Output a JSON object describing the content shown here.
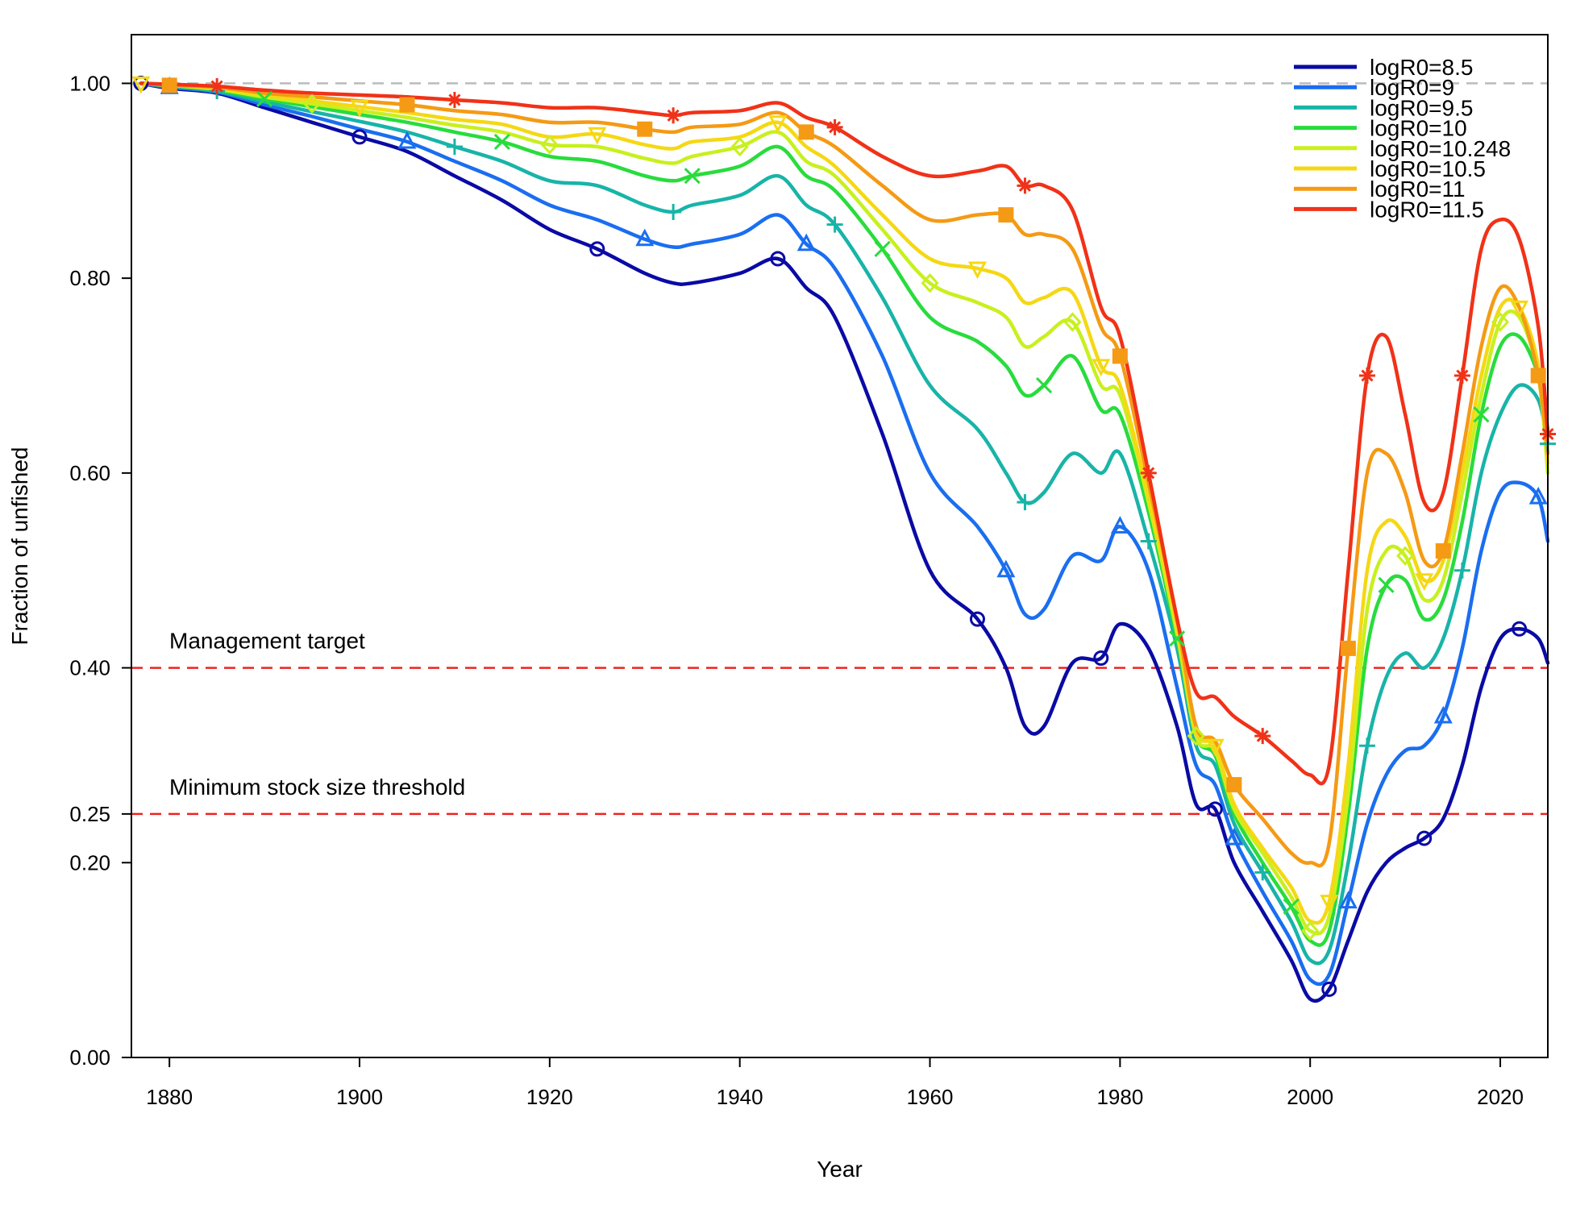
{
  "chart_data": {
    "type": "line",
    "xlabel": "Year",
    "ylabel": "Fraction of unfished",
    "xlim": [
      1876,
      2025
    ],
    "ylim": [
      0,
      1.05
    ],
    "x_ticks": [
      1880,
      1900,
      1920,
      1940,
      1960,
      1980,
      2000,
      2020
    ],
    "y_ticks": [
      0.0,
      0.2,
      0.25,
      0.4,
      0.6,
      0.8,
      1.0
    ],
    "y_tick_labels": [
      "0.00",
      "0.20",
      "0.25",
      "0.40",
      "0.60",
      "0.80",
      "1.00"
    ],
    "grid": false,
    "legend_position": "top-right",
    "reference_lines": [
      {
        "y": 1.0,
        "color": "#bbbbbb",
        "style": "dashed"
      },
      {
        "y": 0.4,
        "color": "#ee2222",
        "style": "dashed",
        "label": "Management target"
      },
      {
        "y": 0.25,
        "color": "#ee2222",
        "style": "dashed",
        "label": "Minimum stock size threshold"
      }
    ],
    "x": [
      1877,
      1880,
      1885,
      1890,
      1895,
      1900,
      1905,
      1910,
      1915,
      1920,
      1925,
      1930,
      1933,
      1935,
      1940,
      1944,
      1947,
      1950,
      1955,
      1960,
      1965,
      1968,
      1970,
      1972,
      1975,
      1978,
      1980,
      1983,
      1986,
      1988,
      1990,
      1992,
      1995,
      1998,
      2000,
      2002,
      2004,
      2006,
      2008,
      2010,
      2012,
      2014,
      2016,
      2018,
      2020,
      2022,
      2024,
      2025
    ],
    "series": [
      {
        "name": "logR0=8.5",
        "color": "#0a0aa5",
        "marker": "circle",
        "values": [
          1.0,
          0.995,
          0.99,
          0.975,
          0.96,
          0.945,
          0.93,
          0.905,
          0.88,
          0.85,
          0.83,
          0.805,
          0.795,
          0.795,
          0.805,
          0.82,
          0.79,
          0.76,
          0.64,
          0.5,
          0.45,
          0.4,
          0.34,
          0.34,
          0.405,
          0.41,
          0.445,
          0.42,
          0.34,
          0.26,
          0.255,
          0.2,
          0.15,
          0.1,
          0.06,
          0.07,
          0.12,
          0.17,
          0.2,
          0.215,
          0.225,
          0.245,
          0.3,
          0.38,
          0.43,
          0.44,
          0.43,
          0.405
        ]
      },
      {
        "name": "logR0=9",
        "color": "#1a6ef0",
        "marker": "triangle",
        "values": [
          1.0,
          0.996,
          0.991,
          0.978,
          0.966,
          0.953,
          0.94,
          0.92,
          0.9,
          0.875,
          0.86,
          0.84,
          0.832,
          0.835,
          0.845,
          0.865,
          0.835,
          0.81,
          0.72,
          0.6,
          0.545,
          0.5,
          0.455,
          0.46,
          0.515,
          0.51,
          0.545,
          0.5,
          0.38,
          0.3,
          0.28,
          0.225,
          0.17,
          0.12,
          0.08,
          0.085,
          0.16,
          0.24,
          0.29,
          0.315,
          0.32,
          0.35,
          0.42,
          0.52,
          0.58,
          0.59,
          0.575,
          0.53
        ]
      },
      {
        "name": "logR0=9.5",
        "color": "#18b4a8",
        "marker": "plus",
        "values": [
          1.0,
          0.997,
          0.992,
          0.981,
          0.971,
          0.961,
          0.95,
          0.935,
          0.92,
          0.9,
          0.895,
          0.875,
          0.868,
          0.875,
          0.885,
          0.905,
          0.875,
          0.855,
          0.78,
          0.69,
          0.645,
          0.6,
          0.57,
          0.58,
          0.62,
          0.6,
          0.62,
          0.53,
          0.42,
          0.32,
          0.3,
          0.24,
          0.19,
          0.14,
          0.1,
          0.11,
          0.2,
          0.32,
          0.39,
          0.415,
          0.4,
          0.43,
          0.5,
          0.6,
          0.66,
          0.69,
          0.675,
          0.63
        ]
      },
      {
        "name": "logR0=10",
        "color": "#28dc3c",
        "marker": "x",
        "values": [
          1.0,
          0.998,
          0.993,
          0.984,
          0.976,
          0.968,
          0.96,
          0.95,
          0.94,
          0.925,
          0.92,
          0.905,
          0.9,
          0.905,
          0.915,
          0.935,
          0.905,
          0.89,
          0.83,
          0.76,
          0.735,
          0.71,
          0.68,
          0.69,
          0.72,
          0.665,
          0.66,
          0.56,
          0.43,
          0.33,
          0.31,
          0.25,
          0.2,
          0.155,
          0.12,
          0.13,
          0.25,
          0.42,
          0.485,
          0.49,
          0.45,
          0.47,
          0.55,
          0.66,
          0.73,
          0.74,
          0.7,
          0.645
        ]
      },
      {
        "name": "logR0=10.248",
        "color": "#c8f01e",
        "marker": "diamond",
        "values": [
          1.0,
          0.998,
          0.994,
          0.986,
          0.979,
          0.972,
          0.965,
          0.957,
          0.95,
          0.937,
          0.935,
          0.923,
          0.918,
          0.925,
          0.935,
          0.95,
          0.92,
          0.905,
          0.85,
          0.795,
          0.775,
          0.76,
          0.73,
          0.74,
          0.755,
          0.69,
          0.68,
          0.57,
          0.435,
          0.33,
          0.315,
          0.255,
          0.21,
          0.165,
          0.13,
          0.145,
          0.27,
          0.46,
          0.52,
          0.515,
          0.47,
          0.49,
          0.58,
          0.68,
          0.755,
          0.76,
          0.7,
          0.6
        ]
      },
      {
        "name": "logR0=10.5",
        "color": "#f5d814",
        "marker": "triangle-down",
        "values": [
          1.0,
          0.998,
          0.995,
          0.988,
          0.982,
          0.976,
          0.97,
          0.963,
          0.958,
          0.945,
          0.948,
          0.937,
          0.933,
          0.94,
          0.945,
          0.96,
          0.935,
          0.915,
          0.865,
          0.82,
          0.81,
          0.8,
          0.775,
          0.78,
          0.785,
          0.71,
          0.69,
          0.575,
          0.44,
          0.335,
          0.32,
          0.26,
          0.215,
          0.175,
          0.14,
          0.16,
          0.3,
          0.5,
          0.55,
          0.535,
          0.49,
          0.51,
          0.6,
          0.7,
          0.77,
          0.77,
          0.71,
          0.61
        ]
      },
      {
        "name": "logR0=11",
        "color": "#f59a14",
        "marker": "square",
        "values": [
          1.0,
          0.998,
          0.996,
          0.99,
          0.986,
          0.982,
          0.978,
          0.972,
          0.968,
          0.96,
          0.96,
          0.953,
          0.95,
          0.955,
          0.958,
          0.97,
          0.95,
          0.935,
          0.895,
          0.86,
          0.865,
          0.865,
          0.845,
          0.845,
          0.83,
          0.75,
          0.72,
          0.59,
          0.45,
          0.34,
          0.325,
          0.28,
          0.245,
          0.21,
          0.2,
          0.22,
          0.42,
          0.6,
          0.62,
          0.58,
          0.51,
          0.52,
          0.62,
          0.73,
          0.79,
          0.77,
          0.7,
          0.62
        ]
      },
      {
        "name": "logR0=11.5",
        "color": "#f03218",
        "marker": "asterisk",
        "values": [
          1.0,
          0.999,
          0.997,
          0.993,
          0.99,
          0.988,
          0.986,
          0.983,
          0.98,
          0.975,
          0.975,
          0.97,
          0.967,
          0.97,
          0.972,
          0.98,
          0.965,
          0.955,
          0.925,
          0.905,
          0.91,
          0.915,
          0.895,
          0.895,
          0.87,
          0.77,
          0.74,
          0.6,
          0.45,
          0.375,
          0.37,
          0.35,
          0.33,
          0.305,
          0.29,
          0.3,
          0.5,
          0.7,
          0.74,
          0.66,
          0.57,
          0.58,
          0.7,
          0.83,
          0.86,
          0.84,
          0.75,
          0.64
        ]
      }
    ]
  },
  "annotations": {
    "management_target": "Management target",
    "minimum_stock": "Minimum stock size threshold"
  }
}
